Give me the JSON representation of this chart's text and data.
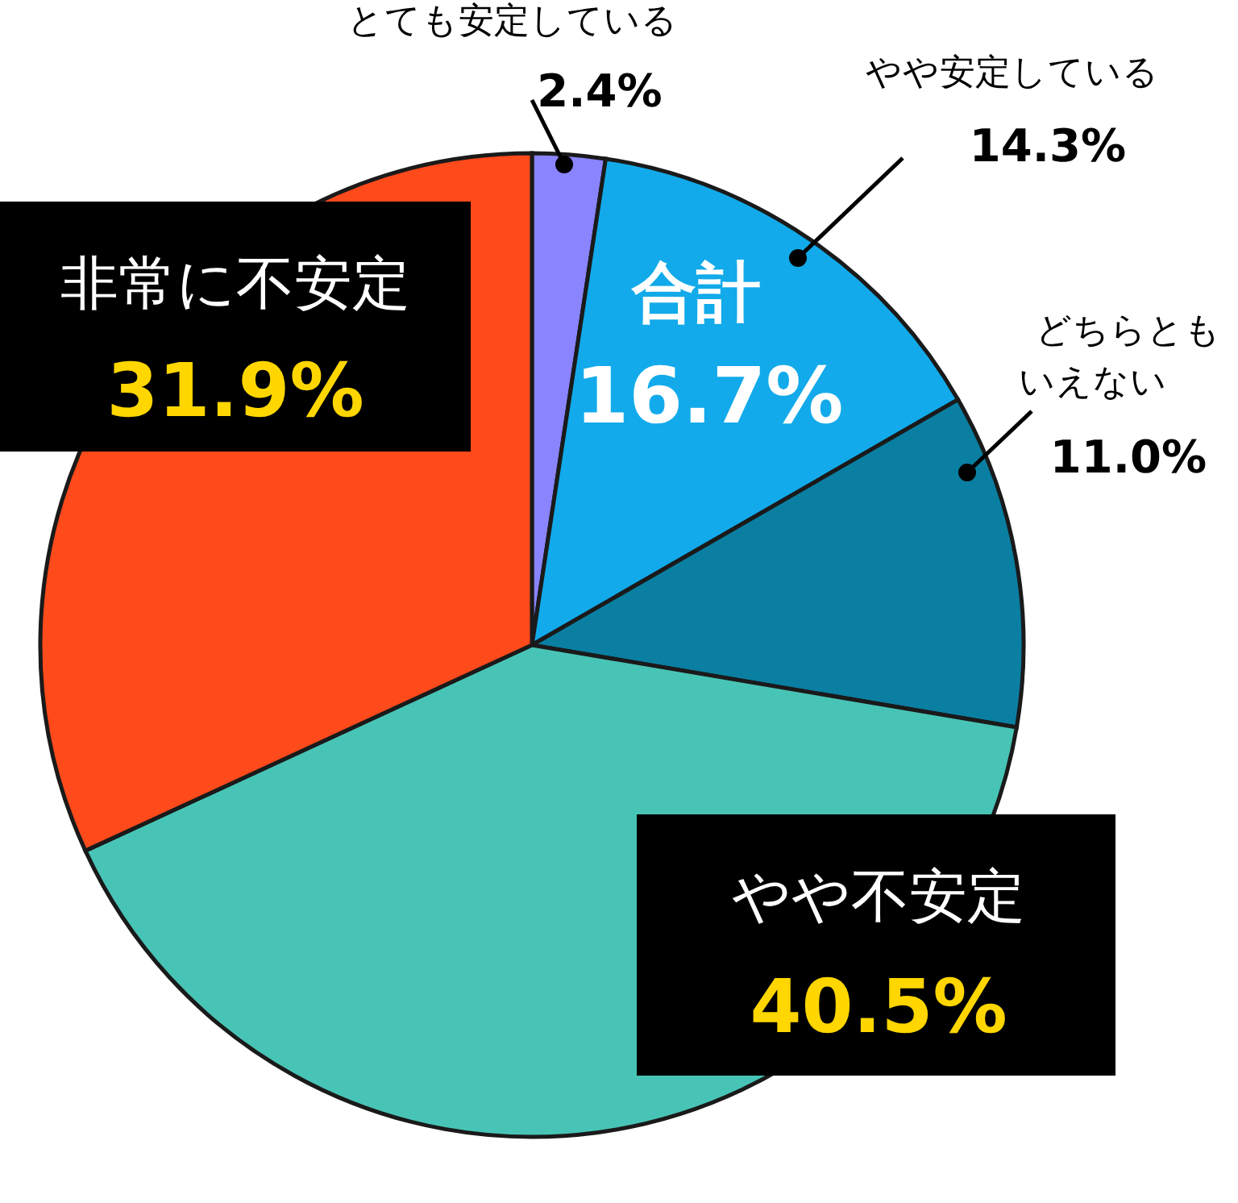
{
  "chart_data": {
    "type": "pie",
    "categories": [
      "とても安定している",
      "やや安定している",
      "どちらともいえない",
      "やや不安定",
      "非常に不安定"
    ],
    "values": [
      2.4,
      14.3,
      11.0,
      40.5,
      31.9
    ],
    "value_labels": [
      "2.4%",
      "14.3%",
      "11.0%",
      "40.5%",
      "31.9%"
    ],
    "colors": [
      "#8a84ff",
      "#12aaea",
      "#0a7fa2",
      "#48c4b6",
      "#ff4a1c"
    ],
    "annotations": [
      "合計 16.7%"
    ],
    "legend": false
  }
}
